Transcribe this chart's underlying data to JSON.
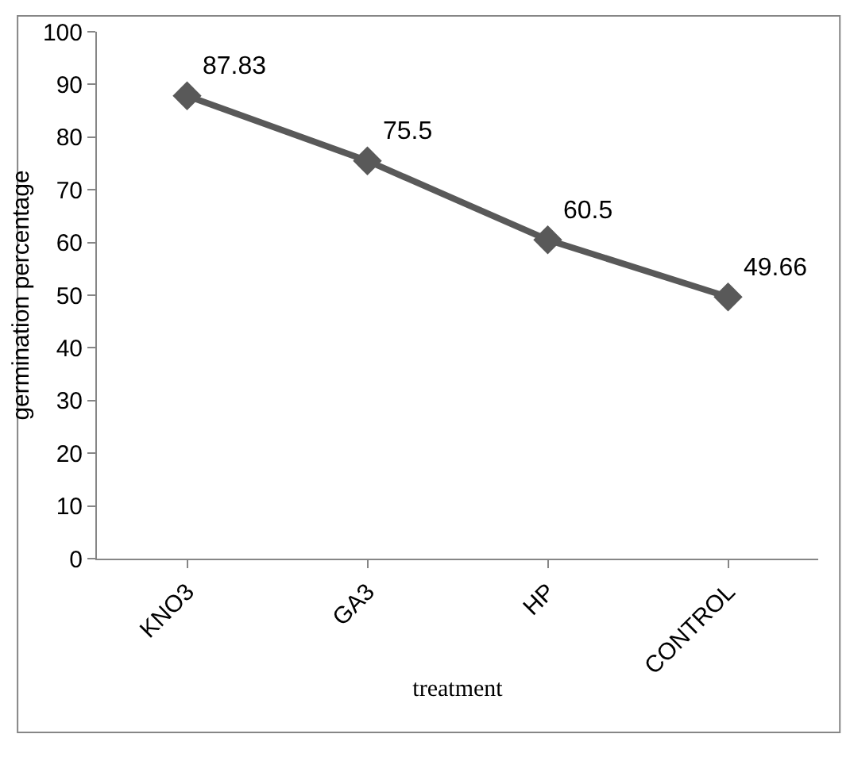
{
  "chart_data": {
    "type": "line",
    "xlabel": "treatment",
    "ylabel": "germination percentage",
    "categories": [
      "KNO3",
      "GA3",
      "HP",
      "CONTROL"
    ],
    "series": [
      {
        "color": "#595959",
        "values": [
          87.83,
          75.5,
          60.5,
          49.66
        ]
      }
    ],
    "ylim": [
      0,
      100
    ],
    "yticks": [
      0,
      10,
      20,
      30,
      40,
      50,
      60,
      70,
      80,
      90,
      100
    ],
    "legend": false,
    "marker": "diamond",
    "line_style": "solid",
    "data_labels": true
  }
}
